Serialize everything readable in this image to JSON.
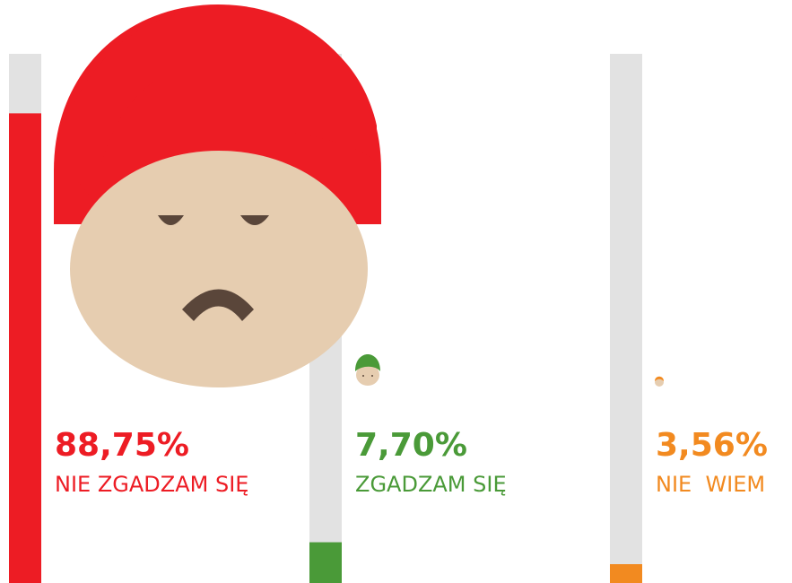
{
  "chart_data": {
    "type": "bar",
    "categories": [
      "NIE ZGADZAM SIĘ",
      "ZGADZAM SIĘ",
      "NIE  WIEM"
    ],
    "values": [
      88.75,
      7.7,
      3.56
    ],
    "value_labels": [
      "88,75%",
      "7,70%",
      "3,56%"
    ],
    "colors": [
      "#ed1c24",
      "#4a9a38",
      "#f28a20"
    ],
    "track_color": "#e2e2e2",
    "ylim": [
      0,
      100
    ]
  }
}
